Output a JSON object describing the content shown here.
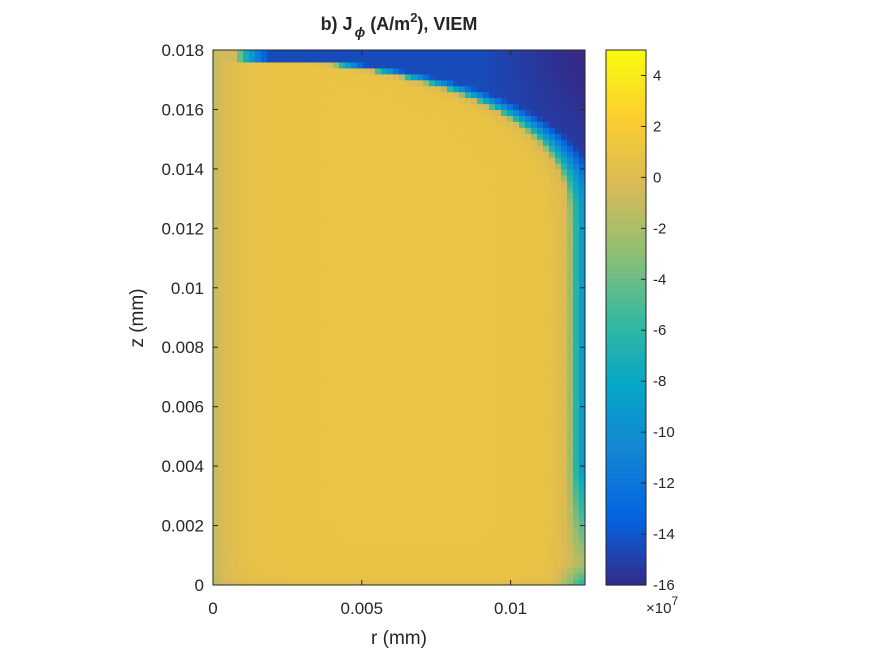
{
  "chart_data": {
    "type": "heatmap",
    "title": {
      "prefix": "b) J",
      "subscript": "ϕ",
      "unit_open": " (A/m",
      "superscript": "2",
      "unit_close": "), VIEM"
    },
    "xlabel": "r (mm)",
    "ylabel": "z (mm)",
    "xlim": [
      0,
      0.0125
    ],
    "ylim": [
      0,
      0.018
    ],
    "x_ticks": [
      {
        "value": 0,
        "label": "0"
      },
      {
        "value": 0.005,
        "label": "0.005"
      },
      {
        "value": 0.01,
        "label": "0.01"
      }
    ],
    "y_ticks": [
      {
        "value": 0,
        "label": "0"
      },
      {
        "value": 0.002,
        "label": "0.002"
      },
      {
        "value": 0.004,
        "label": "0.004"
      },
      {
        "value": 0.006,
        "label": "0.006"
      },
      {
        "value": 0.008,
        "label": "0.008"
      },
      {
        "value": 0.01,
        "label": "0.01"
      },
      {
        "value": 0.012,
        "label": "0.012"
      },
      {
        "value": 0.014,
        "label": "0.014"
      },
      {
        "value": 0.016,
        "label": "0.016"
      },
      {
        "value": 0.018,
        "label": "0.018"
      }
    ],
    "colorbar": {
      "range": [
        -16,
        5
      ],
      "ticks": [
        {
          "value": 4,
          "label": "4"
        },
        {
          "value": 2,
          "label": "2"
        },
        {
          "value": 0,
          "label": "0"
        },
        {
          "value": -2,
          "label": "-2"
        },
        {
          "value": -4,
          "label": "-4"
        },
        {
          "value": -6,
          "label": "-6"
        },
        {
          "value": -8,
          "label": "-8"
        },
        {
          "value": -10,
          "label": "-10"
        },
        {
          "value": -12,
          "label": "-12"
        },
        {
          "value": -14,
          "label": "-14"
        },
        {
          "value": -16,
          "label": "-16"
        }
      ],
      "multiplier_base": "×10",
      "multiplier_exponent": "7",
      "colormap": "parula",
      "colormap_stops": [
        "#352a87",
        "#0363e1",
        "#1485d4",
        "#06a7c6",
        "#38b99e",
        "#92bf73",
        "#d9ba56",
        "#fcce2e",
        "#f9fb0e"
      ]
    },
    "grid": false,
    "field_description": {
      "interior_value": 1.0,
      "min_value": -16,
      "axis_edge_value": -1.5
    }
  }
}
